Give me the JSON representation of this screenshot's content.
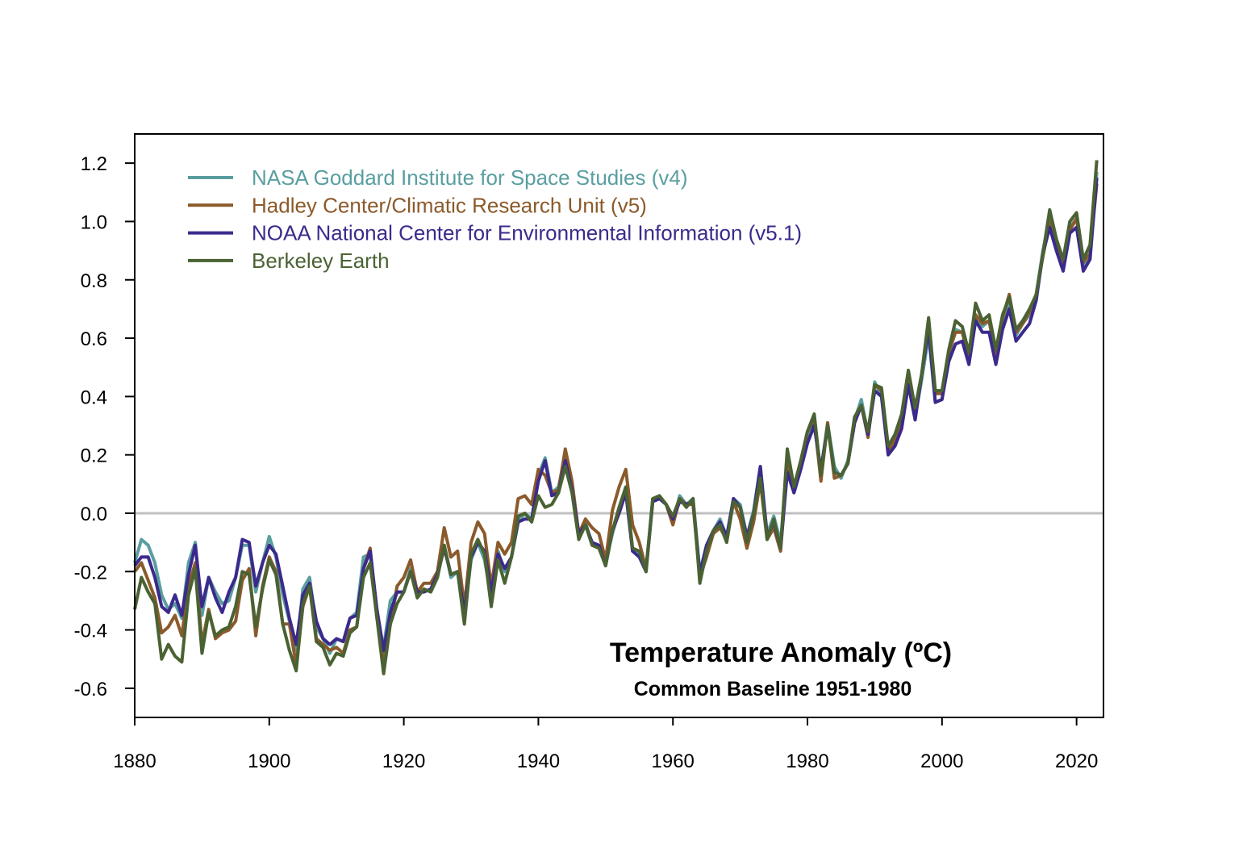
{
  "chart_data": {
    "type": "line",
    "title": "Temperature Anomaly (ºC)",
    "subtitle": "Common Baseline 1951-1980",
    "xlabel": "",
    "ylabel": "",
    "xlim": [
      1880,
      2024
    ],
    "ylim": [
      -0.7,
      1.3
    ],
    "x_ticks": [
      "1880",
      "1900",
      "1920",
      "1940",
      "1960",
      "1980",
      "2000",
      "2020"
    ],
    "y_ticks": [
      "-0.6",
      "-0.4",
      "-0.2",
      "0.0",
      "0.2",
      "0.4",
      "0.6",
      "0.8",
      "1.0",
      "1.2"
    ],
    "zero_line": true,
    "grid": false,
    "legend_position": "top-left",
    "x_start": 1880,
    "series": [
      {
        "name": "NASA Goddard Institute for Space Studies (v4)",
        "color": "#5a9ea0",
        "values": [
          -0.17,
          -0.09,
          -0.11,
          -0.17,
          -0.28,
          -0.33,
          -0.31,
          -0.36,
          -0.17,
          -0.1,
          -0.35,
          -0.22,
          -0.27,
          -0.31,
          -0.3,
          -0.22,
          -0.11,
          -0.11,
          -0.27,
          -0.17,
          -0.08,
          -0.15,
          -0.28,
          -0.37,
          -0.47,
          -0.26,
          -0.22,
          -0.39,
          -0.43,
          -0.48,
          -0.43,
          -0.44,
          -0.36,
          -0.34,
          -0.15,
          -0.14,
          -0.36,
          -0.46,
          -0.3,
          -0.27,
          -0.27,
          -0.19,
          -0.28,
          -0.26,
          -0.27,
          -0.22,
          -0.11,
          -0.22,
          -0.2,
          -0.36,
          -0.16,
          -0.1,
          -0.16,
          -0.29,
          -0.13,
          -0.2,
          -0.15,
          -0.03,
          0.0,
          -0.02,
          0.13,
          0.19,
          0.07,
          0.09,
          0.2,
          0.09,
          -0.07,
          -0.03,
          -0.11,
          -0.11,
          -0.17,
          -0.07,
          0.01,
          0.08,
          -0.13,
          -0.14,
          -0.19,
          0.05,
          0.06,
          0.03,
          -0.03,
          0.06,
          0.03,
          0.05,
          -0.2,
          -0.11,
          -0.06,
          -0.02,
          -0.08,
          0.05,
          0.03,
          -0.08,
          0.01,
          0.16,
          -0.07,
          -0.01,
          -0.1,
          0.18,
          0.07,
          0.16,
          0.26,
          0.32,
          0.14,
          0.31,
          0.16,
          0.12,
          0.18,
          0.32,
          0.39,
          0.27,
          0.45,
          0.4,
          0.22,
          0.23,
          0.31,
          0.45,
          0.33,
          0.46,
          0.61,
          0.38,
          0.39,
          0.54,
          0.63,
          0.62,
          0.53,
          0.68,
          0.64,
          0.66,
          0.54,
          0.65,
          0.72,
          0.61,
          0.65,
          0.68,
          0.75,
          0.9,
          1.01,
          0.92,
          0.85,
          0.98,
          1.01,
          0.85,
          0.89,
          1.17
        ]
      },
      {
        "name": "Hadley Center/Climatic Research Unit (v5)",
        "color": "#8b5a2b",
        "values": [
          -0.2,
          -0.17,
          -0.23,
          -0.29,
          -0.41,
          -0.39,
          -0.35,
          -0.42,
          -0.25,
          -0.17,
          -0.45,
          -0.33,
          -0.43,
          -0.41,
          -0.4,
          -0.37,
          -0.23,
          -0.19,
          -0.42,
          -0.25,
          -0.15,
          -0.2,
          -0.38,
          -0.38,
          -0.52,
          -0.32,
          -0.25,
          -0.43,
          -0.45,
          -0.47,
          -0.46,
          -0.48,
          -0.4,
          -0.39,
          -0.19,
          -0.12,
          -0.34,
          -0.5,
          -0.38,
          -0.25,
          -0.22,
          -0.16,
          -0.27,
          -0.24,
          -0.24,
          -0.2,
          -0.05,
          -0.15,
          -0.13,
          -0.32,
          -0.1,
          -0.03,
          -0.07,
          -0.25,
          -0.1,
          -0.14,
          -0.1,
          0.05,
          0.06,
          0.03,
          0.15,
          0.13,
          0.07,
          0.08,
          0.22,
          0.11,
          -0.07,
          -0.02,
          -0.05,
          -0.07,
          -0.16,
          0.01,
          0.09,
          0.15,
          -0.04,
          -0.1,
          -0.19,
          0.04,
          0.05,
          0.03,
          -0.04,
          0.05,
          0.03,
          0.03,
          -0.22,
          -0.15,
          -0.07,
          -0.05,
          -0.09,
          0.04,
          -0.02,
          -0.12,
          -0.03,
          0.11,
          -0.09,
          -0.05,
          -0.13,
          0.17,
          0.09,
          0.18,
          0.28,
          0.32,
          0.11,
          0.31,
          0.12,
          0.13,
          0.17,
          0.31,
          0.37,
          0.26,
          0.44,
          0.42,
          0.21,
          0.25,
          0.31,
          0.45,
          0.34,
          0.48,
          0.66,
          0.41,
          0.41,
          0.55,
          0.62,
          0.62,
          0.54,
          0.68,
          0.65,
          0.66,
          0.54,
          0.67,
          0.75,
          0.62,
          0.65,
          0.69,
          0.75,
          0.88,
          1.0,
          0.92,
          0.84,
          0.97,
          1.01,
          0.86,
          0.89,
          1.13
        ]
      },
      {
        "name": "NOAA National Center for Environmental Information (v5.1)",
        "color": "#3b2a8c",
        "values": [
          -0.18,
          -0.15,
          -0.15,
          -0.22,
          -0.32,
          -0.34,
          -0.28,
          -0.35,
          -0.21,
          -0.11,
          -0.32,
          -0.22,
          -0.29,
          -0.34,
          -0.27,
          -0.22,
          -0.09,
          -0.1,
          -0.25,
          -0.17,
          -0.11,
          -0.14,
          -0.25,
          -0.36,
          -0.45,
          -0.28,
          -0.24,
          -0.37,
          -0.43,
          -0.45,
          -0.43,
          -0.44,
          -0.36,
          -0.35,
          -0.19,
          -0.13,
          -0.33,
          -0.47,
          -0.34,
          -0.27,
          -0.27,
          -0.2,
          -0.27,
          -0.27,
          -0.26,
          -0.21,
          -0.12,
          -0.21,
          -0.2,
          -0.34,
          -0.15,
          -0.1,
          -0.13,
          -0.27,
          -0.14,
          -0.19,
          -0.15,
          -0.03,
          -0.02,
          -0.02,
          0.11,
          0.18,
          0.06,
          0.07,
          0.18,
          0.08,
          -0.07,
          -0.04,
          -0.1,
          -0.11,
          -0.18,
          -0.06,
          0.0,
          0.07,
          -0.13,
          -0.15,
          -0.2,
          0.04,
          0.05,
          0.03,
          -0.02,
          0.04,
          0.03,
          0.04,
          -0.21,
          -0.11,
          -0.06,
          -0.03,
          -0.08,
          0.05,
          0.02,
          -0.08,
          0.0,
          0.16,
          -0.08,
          -0.03,
          -0.12,
          0.14,
          0.07,
          0.15,
          0.24,
          0.3,
          0.15,
          0.3,
          0.14,
          0.13,
          0.17,
          0.31,
          0.37,
          0.27,
          0.42,
          0.4,
          0.2,
          0.23,
          0.29,
          0.44,
          0.32,
          0.48,
          0.63,
          0.38,
          0.39,
          0.52,
          0.58,
          0.59,
          0.51,
          0.66,
          0.62,
          0.62,
          0.51,
          0.63,
          0.7,
          0.59,
          0.62,
          0.65,
          0.73,
          0.89,
          0.98,
          0.9,
          0.83,
          0.96,
          0.98,
          0.83,
          0.87,
          1.15
        ]
      },
      {
        "name": "Berkeley Earth",
        "color": "#4a6233",
        "values": [
          -0.33,
          -0.22,
          -0.27,
          -0.31,
          -0.5,
          -0.45,
          -0.49,
          -0.51,
          -0.28,
          -0.19,
          -0.48,
          -0.34,
          -0.42,
          -0.4,
          -0.39,
          -0.32,
          -0.2,
          -0.21,
          -0.39,
          -0.26,
          -0.16,
          -0.21,
          -0.38,
          -0.47,
          -0.54,
          -0.31,
          -0.25,
          -0.44,
          -0.46,
          -0.52,
          -0.48,
          -0.49,
          -0.41,
          -0.39,
          -0.22,
          -0.17,
          -0.36,
          -0.55,
          -0.38,
          -0.31,
          -0.27,
          -0.2,
          -0.29,
          -0.26,
          -0.27,
          -0.22,
          -0.11,
          -0.21,
          -0.2,
          -0.38,
          -0.14,
          -0.09,
          -0.14,
          -0.32,
          -0.16,
          -0.24,
          -0.15,
          -0.01,
          0.0,
          -0.03,
          0.06,
          0.02,
          0.03,
          0.07,
          0.16,
          0.07,
          -0.09,
          -0.04,
          -0.11,
          -0.12,
          -0.18,
          -0.06,
          0.02,
          0.09,
          -0.12,
          -0.13,
          -0.2,
          0.05,
          0.06,
          0.03,
          -0.01,
          0.05,
          0.02,
          0.05,
          -0.24,
          -0.13,
          -0.06,
          -0.04,
          -0.1,
          0.04,
          0.02,
          -0.1,
          0.0,
          0.12,
          -0.09,
          -0.02,
          -0.12,
          0.22,
          0.09,
          0.18,
          0.28,
          0.34,
          0.13,
          0.3,
          0.14,
          0.13,
          0.17,
          0.33,
          0.37,
          0.28,
          0.44,
          0.43,
          0.23,
          0.27,
          0.34,
          0.49,
          0.36,
          0.48,
          0.67,
          0.42,
          0.42,
          0.56,
          0.66,
          0.64,
          0.55,
          0.72,
          0.66,
          0.68,
          0.56,
          0.68,
          0.74,
          0.63,
          0.66,
          0.7,
          0.75,
          0.89,
          1.04,
          0.94,
          0.87,
          1.0,
          1.03,
          0.87,
          0.92,
          1.21
        ]
      }
    ]
  }
}
